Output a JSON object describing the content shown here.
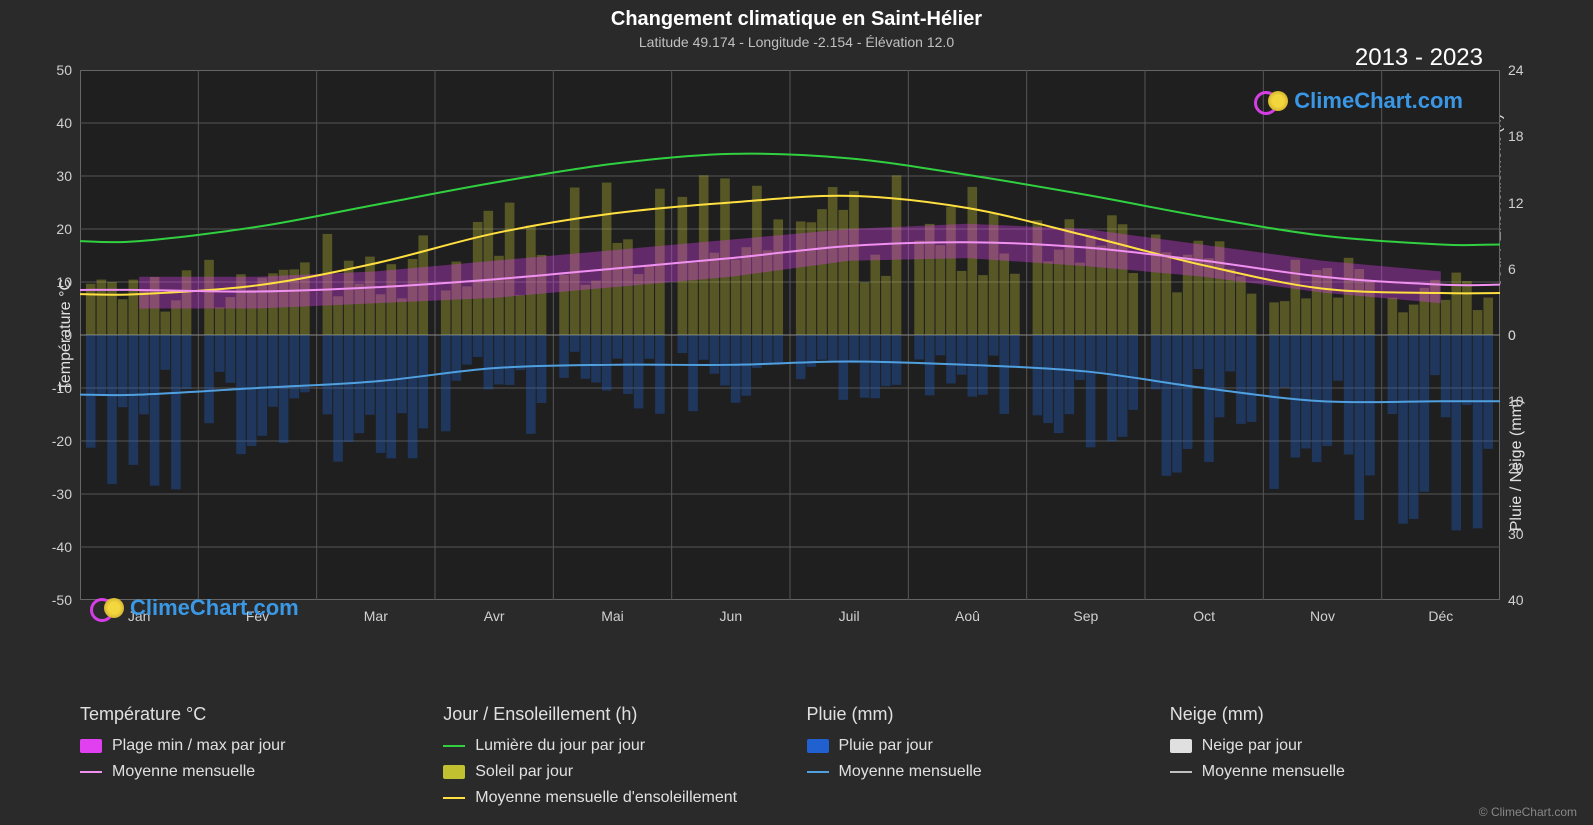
{
  "title": "Changement climatique en Saint-Hélier",
  "subtitle": "Latitude 49.174 - Longitude -2.154 - Élévation 12.0",
  "year_range": "2013 - 2023",
  "brand_text": "ClimeChart.com",
  "copyright": "© ClimeChart.com",
  "colors": {
    "background": "#2a2a2a",
    "plot_bg": "#1f1f1f",
    "grid": "#555555",
    "text": "#e0e0e0",
    "title_text": "#ffffff",
    "temp_range_fill": "#e040f0",
    "temp_avg_line": "#f090f0",
    "daylight_line": "#30d040",
    "sun_fill": "#c0c030",
    "sun_avg_line": "#ffe040",
    "rain_fill": "#2060d0",
    "rain_avg_line": "#50a0e0",
    "snow_fill": "#e0e0e0",
    "snow_avg_line": "#c0c0c0",
    "brand_text": "#3b9ef0"
  },
  "plot": {
    "left_axis": {
      "label": "Température °C",
      "min": -50,
      "max": 50,
      "ticks": [
        -50,
        -40,
        -30,
        -20,
        -10,
        0,
        10,
        20,
        30,
        40,
        50
      ]
    },
    "right_top_axis": {
      "label": "Jour / Ensoleillement (h)",
      "min": 0,
      "max": 24,
      "ticks": [
        0,
        6,
        12,
        18,
        24
      ]
    },
    "right_bot_axis": {
      "label": "Pluie / Neige (mm)",
      "min": 0,
      "max": 40,
      "ticks": [
        0,
        10,
        20,
        30,
        40
      ]
    },
    "months": [
      "Jan",
      "Fév",
      "Mar",
      "Avr",
      "Mai",
      "Jun",
      "Juil",
      "Aoû",
      "Sep",
      "Oct",
      "Nov",
      "Déc"
    ],
    "daylight_hours": [
      8.5,
      9.8,
      11.8,
      13.8,
      15.5,
      16.4,
      16.0,
      14.5,
      12.7,
      10.7,
      9.0,
      8.2
    ],
    "sunshine_avg_hours": [
      3.7,
      4.5,
      6.5,
      9.2,
      11.0,
      12.0,
      12.6,
      11.5,
      9.0,
      6.3,
      4.2,
      3.8
    ],
    "sunshine_daily_peak_hours": [
      6,
      8,
      10,
      12,
      14,
      14.5,
      15,
      14,
      12,
      10,
      7,
      6
    ],
    "temp_avg_c": [
      8.5,
      8.2,
      9.0,
      10.5,
      12.5,
      14.5,
      16.8,
      17.5,
      16.5,
      14.0,
      11.0,
      9.5
    ],
    "temp_min_c": [
      5,
      5,
      6,
      7,
      9,
      11,
      14,
      14.5,
      13,
      11,
      8,
      6
    ],
    "temp_max_c": [
      11,
      11,
      12,
      14,
      16,
      18,
      20,
      21,
      20,
      17,
      14,
      12
    ],
    "rain_avg_mm": [
      9,
      8,
      7,
      5,
      4.5,
      4.5,
      4,
      4.5,
      5.5,
      8,
      10,
      10
    ],
    "rain_daily_peak_mm": [
      25,
      22,
      20,
      15,
      12,
      12,
      10,
      12,
      18,
      25,
      28,
      30
    ]
  },
  "legend": {
    "temp": {
      "header": "Température °C",
      "range": "Plage min / max par jour",
      "avg": "Moyenne mensuelle"
    },
    "day": {
      "header": "Jour / Ensoleillement (h)",
      "daylight": "Lumière du jour par jour",
      "sun": "Soleil par jour",
      "avg": "Moyenne mensuelle d'ensoleillement"
    },
    "rain": {
      "header": "Pluie (mm)",
      "daily": "Pluie par jour",
      "avg": "Moyenne mensuelle"
    },
    "snow": {
      "header": "Neige (mm)",
      "daily": "Neige par jour",
      "avg": "Moyenne mensuelle"
    }
  }
}
